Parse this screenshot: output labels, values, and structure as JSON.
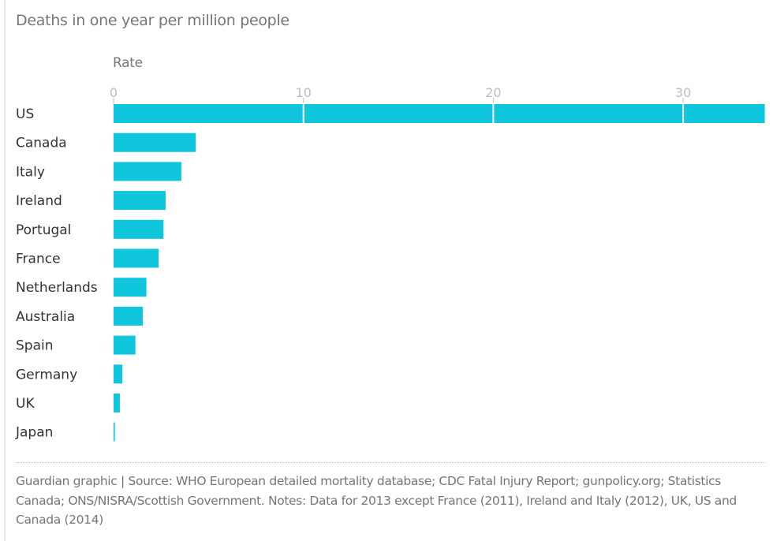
{
  "chart_data": {
    "type": "bar",
    "orientation": "horizontal",
    "title": "Deaths in one year per million people",
    "xlabel": "Rate",
    "ylabel": "",
    "categories": [
      "US",
      "Canada",
      "Italy",
      "Ireland",
      "Portugal",
      "France",
      "Netherlands",
      "Australia",
      "Spain",
      "Germany",
      "UK",
      "Japan"
    ],
    "values": [
      34.3,
      4.33,
      3.57,
      2.74,
      2.63,
      2.37,
      1.73,
      1.54,
      1.15,
      0.46,
      0.33,
      0.07
    ],
    "xticks": [
      0,
      10,
      20,
      30
    ],
    "tick_labels": [
      "0",
      "10",
      "20",
      "30"
    ],
    "xlim": [
      0,
      34.3
    ],
    "grid": true,
    "bar_color": "#0fc6dc",
    "legend": "none"
  },
  "footer": {
    "source": "Guardian graphic | Source: WHO European detailed mortality database; CDC Fatal Injury Report; gunpolicy.org; Statistics Canada; ONS/NISRA/Scottish Government. Notes: Data for 2013 except France (2011), Ireland and Italy (2012), UK, US and Canada (2014)"
  }
}
